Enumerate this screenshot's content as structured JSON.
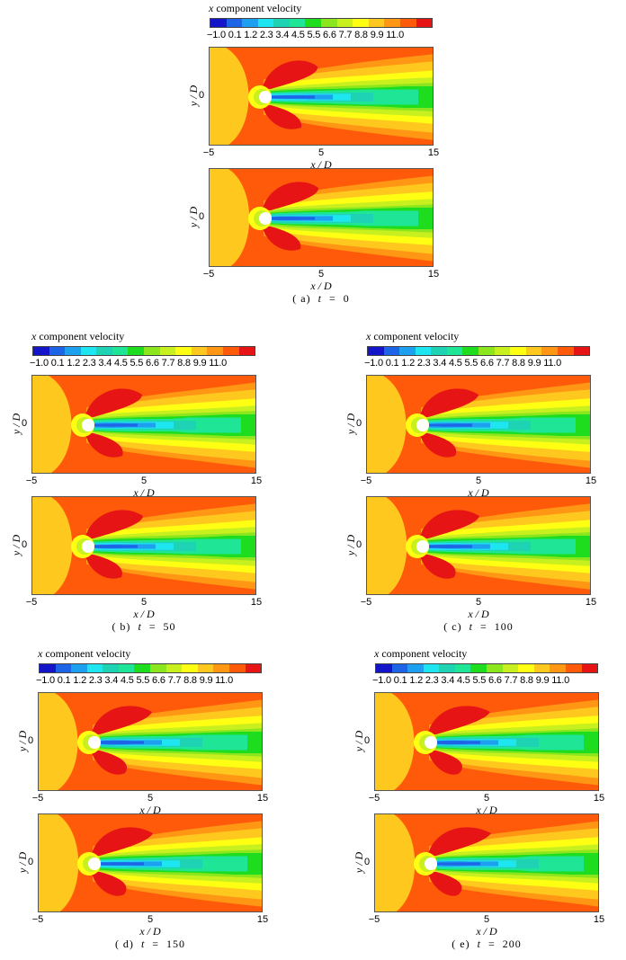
{
  "colorbar": {
    "title_var": "x",
    "title_rest": " component velocity",
    "levels_text": "−1.0 0.1 1.2 2.3 3.4 4.5 5.5 6.6 7.7 8.8 9.9 11.0",
    "colors": [
      "#1414c8",
      "#1e64e6",
      "#1ea0f0",
      "#1ee6f0",
      "#1ed2b4",
      "#1ee696",
      "#1edc1e",
      "#8ce61e",
      "#c8f01e",
      "#ffff14",
      "#ffc81e",
      "#ff9614",
      "#ff5a0a",
      "#e61414"
    ]
  },
  "axes": {
    "ylabel": "y / D",
    "xlabel": "x / D",
    "ytick": "0",
    "xticks": [
      "−5",
      "5",
      "15"
    ]
  },
  "captions": {
    "a": {
      "prefix": "( a)  ",
      "var": "t",
      "rest": "  =  0"
    },
    "b": {
      "prefix": "( b)  ",
      "var": "t",
      "rest": "  =  50"
    },
    "c": {
      "prefix": "( c)  ",
      "var": "t",
      "rest": "  =  100"
    },
    "d": {
      "prefix": "( d)  ",
      "var": "t",
      "rest": "  =  150"
    },
    "e": {
      "prefix": "( e)  ",
      "var": "t",
      "rest": "  =  200"
    }
  },
  "chart_data": {
    "type": "heatmap",
    "title": "x component velocity",
    "xlabel": "x / D",
    "ylabel": "y / D",
    "xlim": [
      -5,
      15
    ],
    "x_ticks": [
      -5,
      5,
      15
    ],
    "y_ticks": [
      0
    ],
    "colorbar_levels": [
      -1.0,
      0.1,
      1.2,
      2.3,
      3.4,
      4.5,
      5.5,
      6.6,
      7.7,
      8.8,
      9.9,
      11.0
    ],
    "panels": [
      {
        "label": "(a)",
        "t": 0,
        "plots": 2
      },
      {
        "label": "(b)",
        "t": 50,
        "plots": 2
      },
      {
        "label": "(c)",
        "t": 100,
        "plots": 2
      },
      {
        "label": "(d)",
        "t": 150,
        "plots": 2
      },
      {
        "label": "(e)",
        "t": 200,
        "plots": 2
      }
    ]
  }
}
